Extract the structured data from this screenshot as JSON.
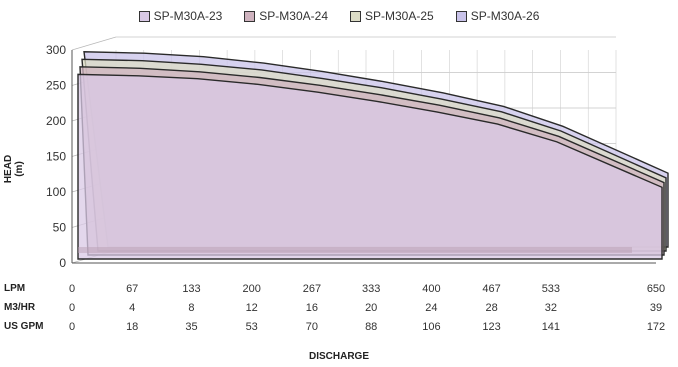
{
  "chart_data": {
    "type": "area",
    "legend_position": "top",
    "ylabel": "HEAD (m)",
    "xlabel": "DISCHARGE",
    "ylim": [
      0,
      300
    ],
    "yticks": [
      0,
      50,
      100,
      150,
      200,
      250,
      300
    ],
    "grid": true,
    "x_rows": [
      {
        "label": "LPM",
        "ticks": [
          "0",
          "67",
          "133",
          "200",
          "267",
          "333",
          "400",
          "467",
          "533",
          "650"
        ]
      },
      {
        "label": "M3/HR",
        "ticks": [
          "0",
          "4",
          "8",
          "12",
          "16",
          "20",
          "24",
          "28",
          "32",
          "39"
        ]
      },
      {
        "label": "US GPM",
        "ticks": [
          "0",
          "18",
          "35",
          "53",
          "70",
          "88",
          "106",
          "123",
          "141",
          "172"
        ]
      }
    ],
    "x": [
      0,
      67,
      133,
      200,
      267,
      333,
      400,
      467,
      533,
      650
    ],
    "series": [
      {
        "name": "SP-M30A-23",
        "color": "#d9c9e6",
        "values": [
          260,
          258,
          254,
          246,
          235,
          222,
          207,
          190,
          165,
          101
        ]
      },
      {
        "name": "SP-M30A-24",
        "color": "#cfb3bf",
        "values": [
          265,
          263,
          258,
          250,
          239,
          226,
          211,
          193,
          167,
          102
        ]
      },
      {
        "name": "SP-M30A-25",
        "color": "#dcdcc6",
        "values": [
          270,
          268,
          263,
          255,
          243,
          230,
          214,
          196,
          169,
          103
        ]
      },
      {
        "name": "SP-M30A-26",
        "color": "#c9c3ea",
        "values": [
          275,
          273,
          268,
          259,
          247,
          233,
          217,
          198,
          170,
          104
        ]
      }
    ]
  }
}
